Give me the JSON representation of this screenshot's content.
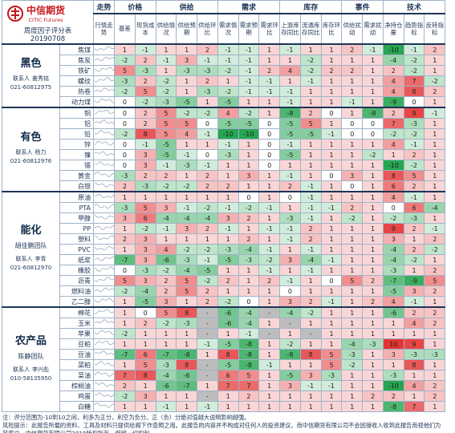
{
  "header": {
    "logo_cn": "中信期货",
    "logo_en": "CITIC Futures",
    "title": "周度因子评分表",
    "date": "20190708"
  },
  "columns": {
    "trend": {
      "group": "走势",
      "label": "行情走势"
    },
    "groups": [
      {
        "name": "价格",
        "columns": [
          "基差",
          "现货成本"
        ]
      },
      {
        "name": "供给",
        "columns": [
          "供给情况",
          "供给预期",
          "供给环比"
        ]
      },
      {
        "name": "需求",
        "columns": [
          "需求情况",
          "需求预期",
          "需求环比"
        ]
      },
      {
        "name": "库存",
        "columns": [
          "上游库存同比",
          "流通库存同比",
          "库存环比"
        ]
      },
      {
        "name": "事件",
        "columns": [
          "供给扰动",
          "需求扰动"
        ]
      },
      {
        "name": "技术",
        "columns": [
          "净持仓量",
          "趋势指标",
          "反转指标"
        ]
      }
    ]
  },
  "sections": [
    {
      "name": "黑色",
      "contact": {
        "label": "联系人",
        "name": "姜秀铭",
        "phone": "021-60812975"
      },
      "rows": [
        {
          "name": "焦煤",
          "scores": [
            1,
            -1,
            1,
            1,
            2,
            -1,
            -1,
            1,
            -1,
            1,
            1,
            2,
            -1,
            -10,
            -1,
            2
          ]
        },
        {
          "name": "焦炭",
          "scores": [
            -2,
            2,
            -1,
            3,
            -1,
            -1,
            -1,
            1,
            1,
            -2,
            1,
            1,
            1,
            -4,
            -2,
            1
          ]
        },
        {
          "name": "铁矿",
          "scores": [
            5,
            -3,
            1,
            -3,
            -3,
            -2,
            -1,
            2,
            4,
            -2,
            2,
            2,
            1,
            2,
            -2,
            1
          ]
        },
        {
          "name": "螺纹",
          "scores": [
            -3,
            2,
            -2,
            1,
            2,
            1,
            -1,
            -1,
            1,
            -1,
            1,
            1,
            1,
            4,
            7,
            -2
          ]
        },
        {
          "name": "热卷",
          "scores": [
            -2,
            5,
            -2,
            1,
            -3,
            -2,
            -1,
            -1,
            -1,
            1,
            1,
            1,
            1,
            4,
            8,
            2
          ]
        },
        {
          "name": "动力煤",
          "scores": [
            0,
            -2,
            -3,
            -5,
            1,
            -5,
            1,
            1,
            -1,
            1,
            1,
            -1,
            1,
            -9,
            0,
            1
          ]
        }
      ]
    },
    {
      "name": "有色",
      "contact": {
        "label": "联系人",
        "name": "杨力",
        "phone": "021-60812976"
      },
      "rows": [
        {
          "name": "铜",
          "scores": [
            0,
            2,
            5,
            -2,
            -2,
            4,
            -2,
            1,
            -8,
            2,
            0,
            1,
            -8,
            2,
            9,
            -1
          ]
        },
        {
          "name": "铝",
          "scores": [
            0,
            2,
            5,
            5,
            0,
            -5,
            -5,
            0,
            -5,
            5,
            1,
            0,
            0,
            7,
            -3,
            1
          ]
        },
        {
          "name": "铅",
          "scores": [
            -2,
            8,
            5,
            4,
            -1,
            -10,
            -10,
            0,
            -5,
            -5,
            -1,
            0,
            0,
            -2,
            -2,
            1
          ]
        },
        {
          "name": "锌",
          "scores": [
            0,
            -1,
            -5,
            1,
            1,
            -1,
            1,
            0,
            -1,
            1,
            1,
            1,
            1,
            4,
            -1,
            1
          ]
        },
        {
          "name": "镍",
          "scores": [
            0,
            3,
            -5,
            -1,
            0,
            -3,
            1,
            0,
            -5,
            1,
            1,
            1,
            -2,
            1,
            2,
            1
          ]
        },
        {
          "name": "锡",
          "scores": [
            0,
            3,
            -1,
            -3,
            -1,
            1,
            1,
            0,
            1,
            1,
            1,
            1,
            1,
            -10,
            -2,
            1
          ]
        },
        {
          "name": "黄金",
          "scores": [
            -3,
            2,
            2,
            1,
            2,
            1,
            3,
            1,
            -1,
            1,
            0,
            3,
            1,
            8,
            5,
            1
          ]
        },
        {
          "name": "白银",
          "scores": [
            2,
            -3,
            -2,
            -2,
            2,
            2,
            1,
            1,
            2,
            -1,
            1,
            0,
            1,
            6,
            2,
            1
          ]
        }
      ]
    },
    {
      "name": "能化",
      "team": "胡佳鹏团队",
      "contact": {
        "label": "联系人",
        "name": "李青",
        "phone": "021-60812970"
      },
      "rows": [
        {
          "name": "原油",
          "scores": [
            1,
            1,
            1,
            1,
            1,
            1,
            0,
            1,
            0,
            -1,
            1,
            1,
            1,
            4,
            -1,
            1
          ]
        },
        {
          "name": "PTA",
          "scores": [
            -3,
            5,
            3,
            -1,
            -2,
            -1,
            -2,
            -1,
            1,
            -1,
            -1,
            2,
            1,
            0,
            6,
            -4
          ]
        },
        {
          "name": "甲醇",
          "scores": [
            3,
            6,
            -4,
            -4,
            -4,
            3,
            2,
            1,
            -3,
            -1,
            1,
            -2,
            1,
            -2,
            -3,
            1
          ]
        },
        {
          "name": "PP",
          "scores": [
            1,
            -2,
            -1,
            3,
            2,
            -1,
            1,
            -1,
            -1,
            2,
            1,
            1,
            1,
            9,
            2,
            -1
          ]
        },
        {
          "name": "塑料",
          "scores": [
            2,
            3,
            1,
            1,
            1,
            1,
            2,
            1,
            -1,
            2,
            1,
            1,
            1,
            3,
            1,
            2
          ]
        },
        {
          "name": "PVC",
          "scores": [
            1,
            3,
            4,
            -2,
            -2,
            -3,
            -4,
            -1,
            1,
            -1,
            1,
            1,
            1,
            -4,
            2,
            -2
          ]
        },
        {
          "name": "纸浆",
          "scores": [
            -7,
            3,
            -6,
            -3,
            -1,
            -5,
            -3,
            -2,
            3,
            -4,
            -1,
            1,
            1,
            -4,
            -2,
            1
          ]
        },
        {
          "name": "橡胶",
          "scores": [
            0,
            -3,
            -2,
            -4,
            -5,
            1,
            1,
            -1,
            1,
            -1,
            1,
            1,
            1,
            -3,
            1,
            2
          ]
        },
        {
          "name": "沥青",
          "scores": [
            5,
            3,
            2,
            5,
            -2,
            2,
            1,
            2,
            -1,
            1,
            0,
            5,
            2,
            -7,
            -9,
            5
          ]
        },
        {
          "name": "燃料油",
          "scores": [
            -2,
            -4,
            2,
            5,
            2,
            1,
            1,
            1,
            0,
            1,
            1,
            1,
            1,
            -5,
            3,
            2
          ]
        },
        {
          "name": "乙二醇",
          "scores": [
            1,
            -5,
            3,
            1,
            2,
            -2,
            0,
            1,
            3,
            2,
            -1,
            1,
            2,
            4,
            -1,
            1
          ]
        }
      ]
    },
    {
      "name": "农产品",
      "team": "陈静团队",
      "contact": {
        "label": "联系人",
        "name": "李兴彪",
        "phone": "010-58135950"
      },
      "rows": [
        {
          "name": "棉花",
          "scores": [
            1,
            0,
            5,
            8,
            "-",
            -6,
            -4,
            "-",
            -4,
            -2,
            1,
            1,
            1,
            -6,
            2,
            2
          ]
        },
        {
          "name": "玉米",
          "scores": [
            1,
            2,
            -2,
            -3,
            "-",
            -6,
            -4,
            1,
            "-",
            1,
            1,
            1,
            1,
            1,
            4,
            2
          ]
        },
        {
          "name": "苹果",
          "scores": [
            -2,
            1,
            1,
            1,
            "-",
            1,
            -1,
            "-",
            1,
            "-",
            1,
            1,
            1,
            1,
            1,
            1
          ]
        },
        {
          "name": "豆粕",
          "scores": [
            1,
            1,
            1,
            1,
            -1,
            -5,
            -8,
            1,
            -2,
            1,
            1,
            -4,
            -3,
            10,
            9,
            1
          ]
        },
        {
          "name": "豆油",
          "scores": [
            -7,
            6,
            -7,
            -8,
            1,
            8,
            -8,
            1,
            -8,
            8,
            5,
            -3,
            1,
            3,
            -3,
            -3
          ]
        },
        {
          "name": "菜粕",
          "scores": [
            1,
            5,
            -3,
            8,
            "-",
            -5,
            -8,
            -1,
            1,
            1,
            5,
            -2,
            1,
            1,
            8,
            1
          ]
        },
        {
          "name": "菜油",
          "scores": [
            7,
            8,
            -4,
            -6,
            "-",
            6,
            5,
            1,
            -5,
            3,
            -3,
            1,
            1,
            -3,
            1,
            1
          ]
        },
        {
          "name": "棕榈油",
          "scores": [
            2,
            1,
            -6,
            -7,
            1,
            7,
            7,
            1,
            3,
            -1,
            -1,
            1,
            1,
            -10,
            4,
            2
          ]
        },
        {
          "name": "鸡蛋",
          "scores": [
            -2,
            3,
            1,
            1,
            "-",
            1,
            2,
            1,
            1,
            1,
            1,
            1,
            2,
            2,
            1,
            2
          ]
        },
        {
          "name": "白糖",
          "scores": [
            1,
            1,
            -1,
            1,
            -1,
            1,
            1,
            1,
            1,
            1,
            1,
            1,
            1,
            -8,
            7,
            1
          ]
        }
      ]
    }
  ],
  "footer": {
    "note": "注：评分范围为-10到10之间，利多为正分，利空为负分。正（负）分绝对值越大说明影响越强。",
    "risk": "风险提示：此报告所载的资料、工具及材料只提供给阁下作查照之用。此报告的内容并不构成对任何人的投资建议，而中信期货有限公司不会因接收人收到此报告而视他们为其客户。中信期货有限公司2019版权所有，保留一切权利。"
  }
}
